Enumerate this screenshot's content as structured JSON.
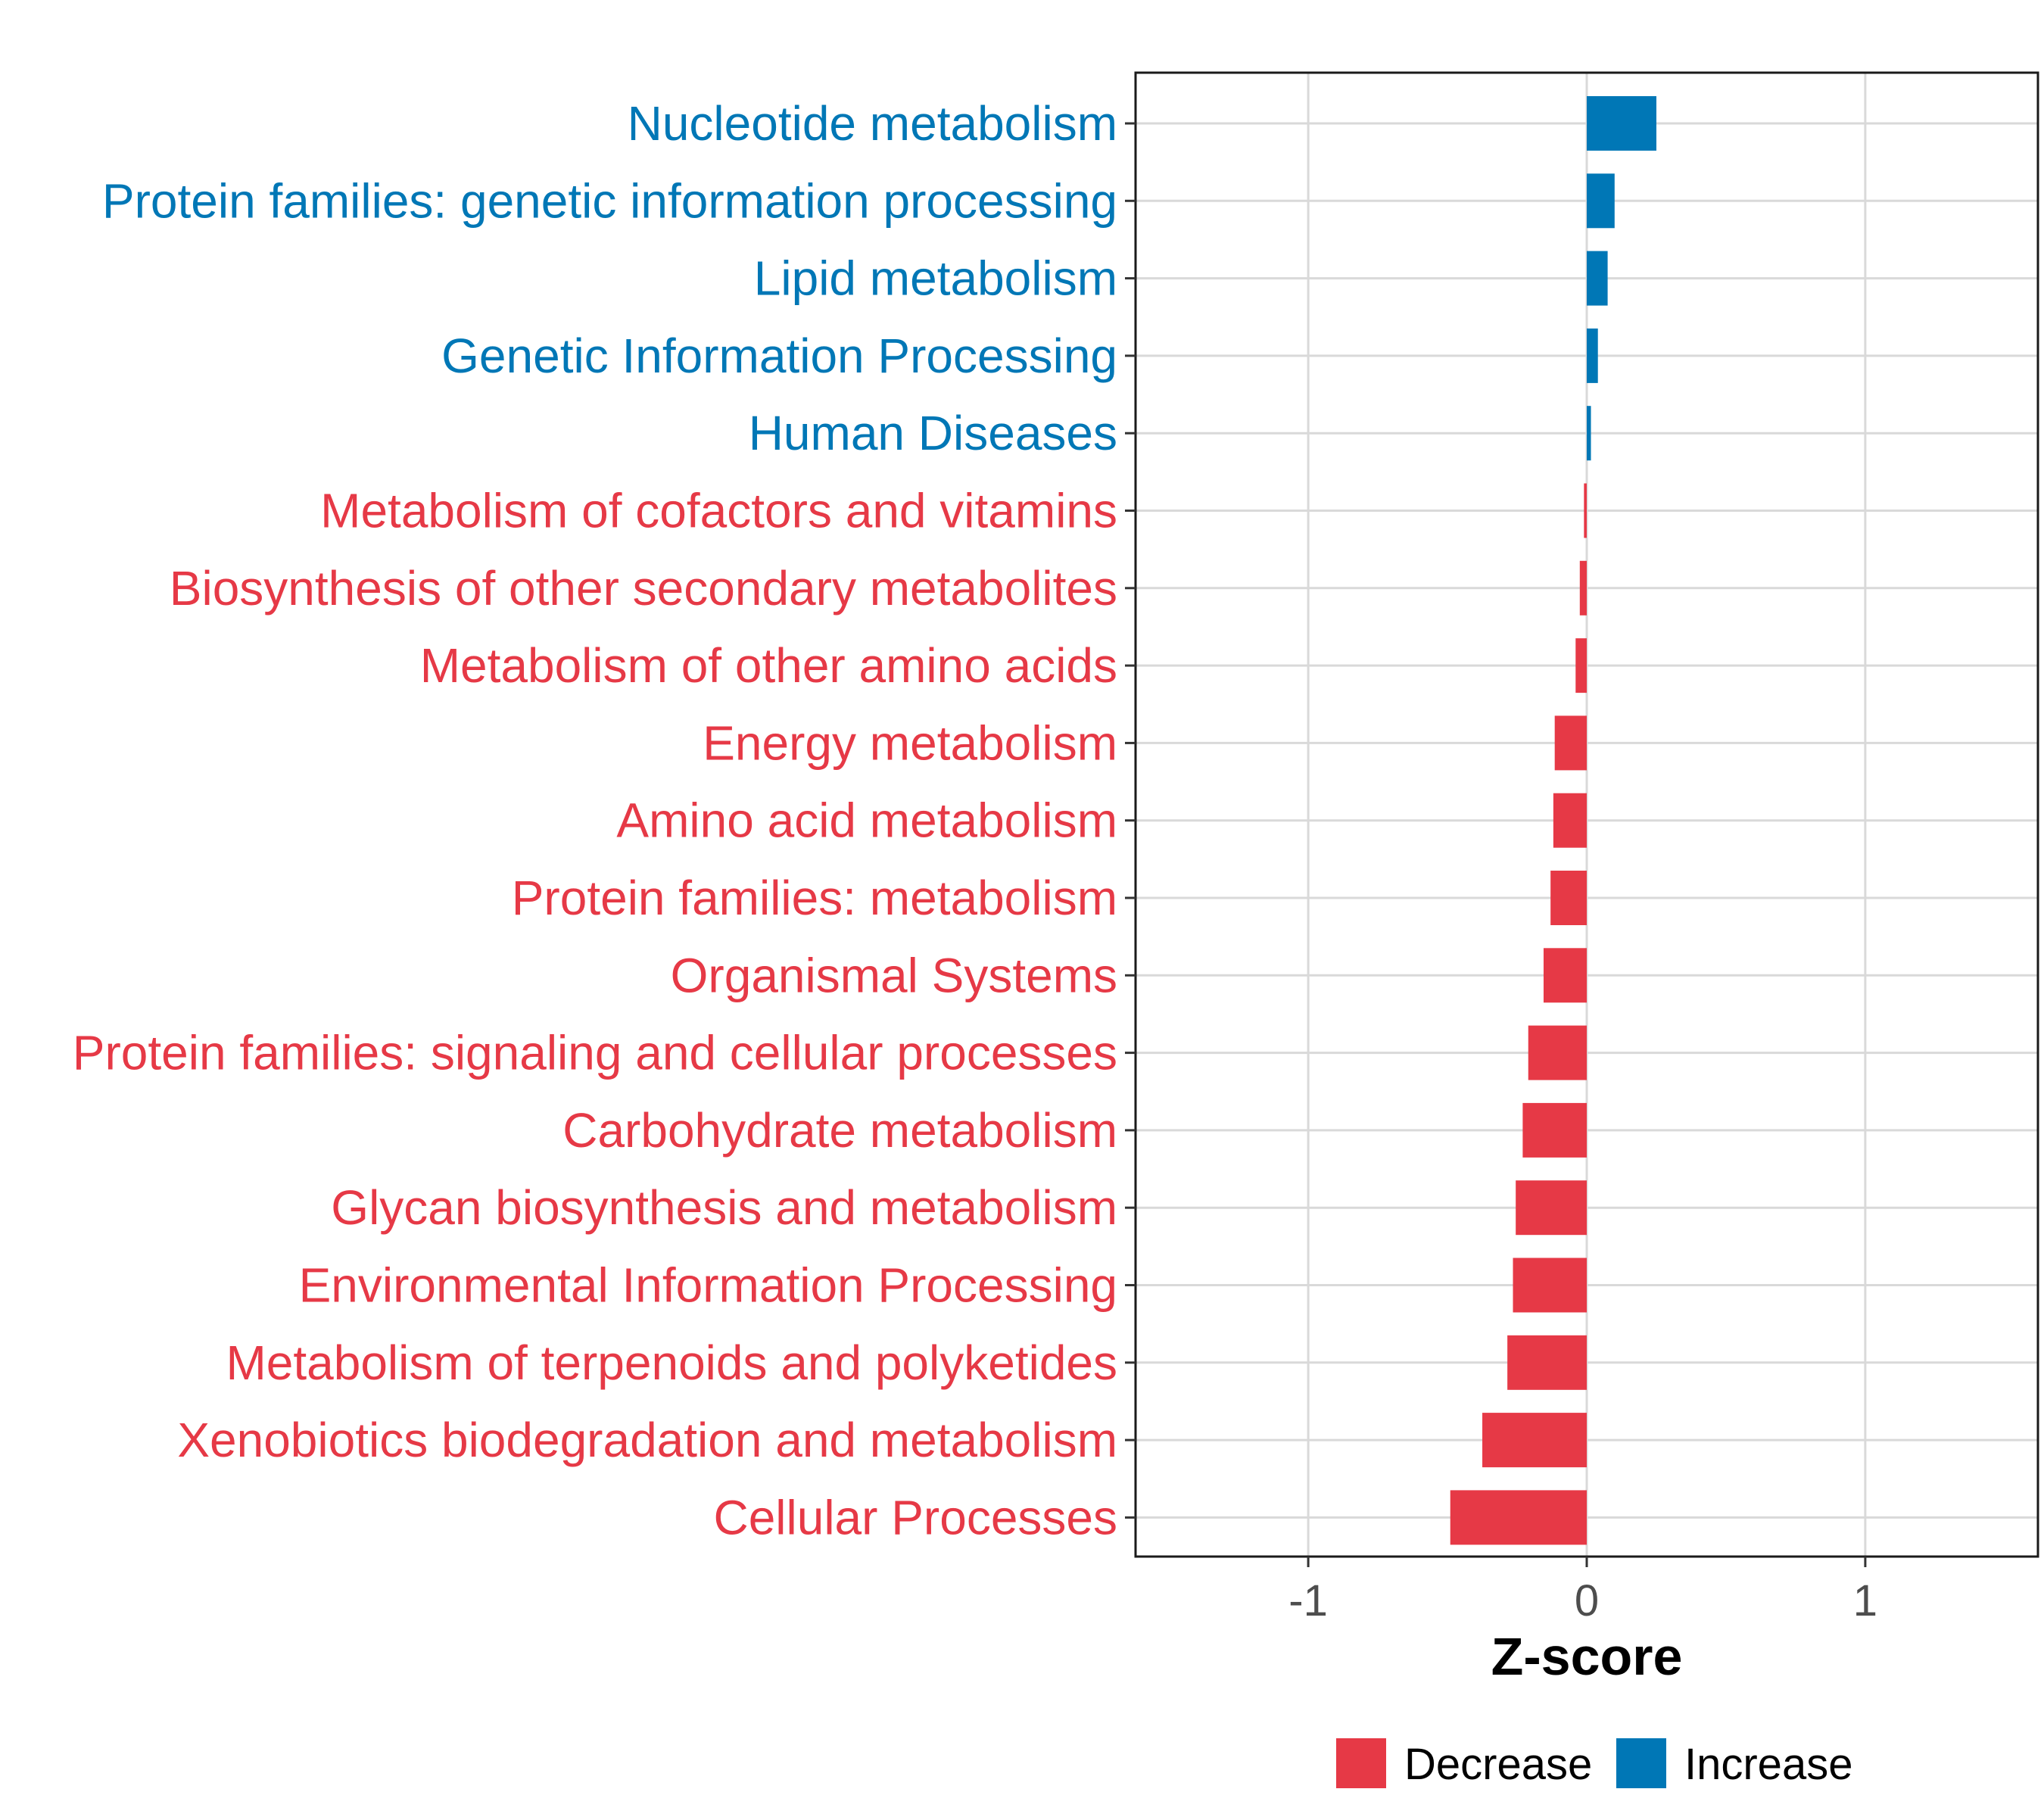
{
  "chart_data": {
    "type": "bar",
    "orientation": "horizontal",
    "title": "",
    "xlabel": "Z-score",
    "ylabel": "",
    "xlim": [
      -1.62,
      1.62
    ],
    "xticks": [
      -1,
      0,
      1
    ],
    "xtick_labels": [
      "-1",
      "0",
      "1"
    ],
    "grid": true,
    "legend_position": "bottom",
    "colors": {
      "Decrease": "#e63946",
      "Increase": "#0077b6"
    },
    "legend": [
      {
        "label": "Decrease",
        "color": "#e63946"
      },
      {
        "label": "Increase",
        "color": "#0077b6"
      }
    ],
    "categories": [
      "Nucleotide metabolism",
      "Protein families: genetic information processing",
      "Lipid metabolism",
      "Genetic Information Processing",
      "Human Diseases",
      "Metabolism of cofactors and vitamins",
      "Biosynthesis of other secondary metabolites",
      "Metabolism of other amino acids",
      "Energy metabolism",
      "Amino acid metabolism",
      "Protein families: metabolism",
      "Organismal Systems",
      "Protein families: signaling and cellular processes",
      "Carbohydrate metabolism",
      "Glycan biosynthesis and metabolism",
      "Environmental Information Processing",
      "Metabolism of terpenoids and polyketides",
      "Xenobiotics biodegradation and metabolism",
      "Cellular Processes"
    ],
    "values": [
      0.25,
      0.1,
      0.075,
      0.04,
      0.015,
      -0.01,
      -0.025,
      -0.04,
      -0.115,
      -0.12,
      -0.13,
      -0.155,
      -0.21,
      -0.23,
      -0.255,
      -0.265,
      -0.285,
      -0.375,
      -0.49
    ],
    "groups": [
      "Increase",
      "Increase",
      "Increase",
      "Increase",
      "Increase",
      "Decrease",
      "Decrease",
      "Decrease",
      "Decrease",
      "Decrease",
      "Decrease",
      "Decrease",
      "Decrease",
      "Decrease",
      "Decrease",
      "Decrease",
      "Decrease",
      "Decrease",
      "Decrease"
    ]
  }
}
